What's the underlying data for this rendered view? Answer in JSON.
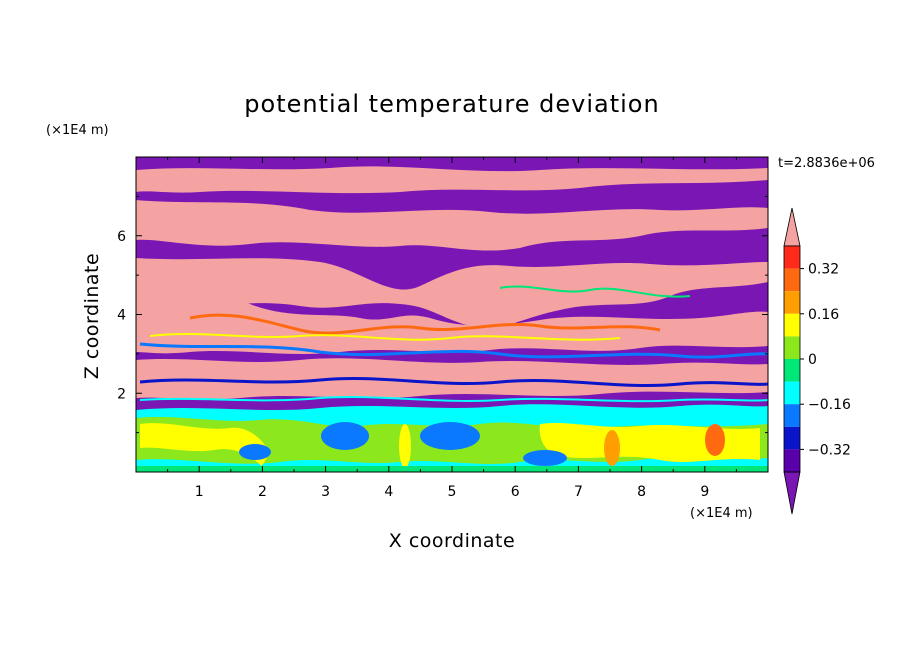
{
  "chart_data": {
    "type": "heatmap",
    "title": "potential temperature deviation",
    "xlabel": "X coordinate",
    "ylabel": "Z coordinate",
    "x_unit": "(×1E4 m)",
    "y_unit": "(×1E4 m)",
    "time_label": "t=2.8836e+06",
    "xlim": [
      0,
      10
    ],
    "ylim": [
      0,
      8
    ],
    "x_ticks": [
      1,
      2,
      3,
      4,
      5,
      6,
      7,
      8,
      9
    ],
    "y_ticks": [
      2,
      4,
      6
    ],
    "grid": false,
    "colorbar": {
      "levels": [
        -0.4,
        -0.32,
        -0.24,
        -0.16,
        -0.08,
        0,
        0.08,
        0.16,
        0.24,
        0.32,
        0.4
      ],
      "tick_labels": [
        "0.32",
        "0.16",
        "0",
        "−0.16",
        "−0.32"
      ],
      "tick_values": [
        0.32,
        0.16,
        0,
        -0.16,
        -0.32
      ],
      "colors": [
        "#f4a2a2",
        "#ff2a1a",
        "#ff6a10",
        "#ff9e00",
        "#ffff00",
        "#8ce81c",
        "#00e678",
        "#00ffff",
        "#0a78ff",
        "#0a14c8",
        "#5a00aa",
        "#7a16b4"
      ],
      "extend": "both"
    }
  }
}
